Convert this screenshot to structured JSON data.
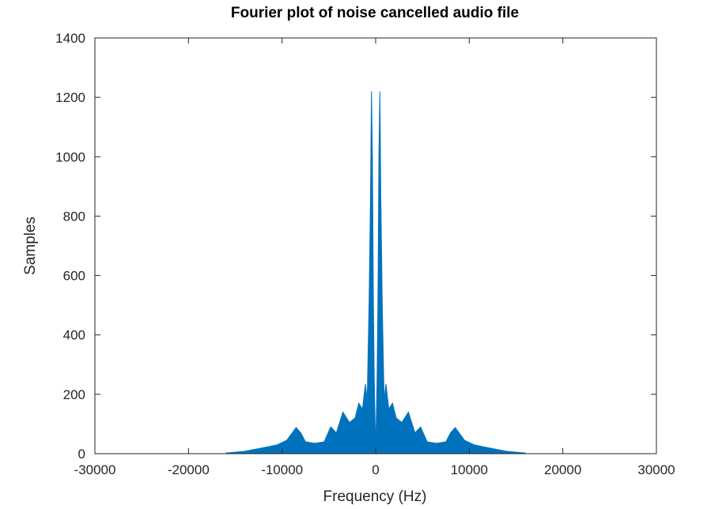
{
  "chart_data": {
    "type": "line",
    "title": "Fourier plot of noise cancelled audio file",
    "xlabel": "Frequency (Hz)",
    "ylabel": "Samples",
    "xlim": [
      -30000,
      30000
    ],
    "ylim": [
      0,
      1400
    ],
    "xticks": [
      -30000,
      -20000,
      -10000,
      0,
      10000,
      20000,
      30000
    ],
    "yticks": [
      0,
      200,
      400,
      600,
      800,
      1000,
      1200,
      1400
    ],
    "xtick_labels": [
      "-30000",
      "-20000",
      "-10000",
      "0",
      "10000",
      "20000",
      "30000"
    ],
    "ytick_labels": [
      "0",
      "200",
      "400",
      "600",
      "800",
      "1000",
      "1200",
      "1400"
    ],
    "grid": false,
    "line_color": "#0072bd",
    "series": [
      {
        "x": [
          -16000,
          -14000,
          -12000,
          -10500,
          -9500,
          -8800,
          -8500,
          -8000,
          -7500,
          -6500,
          -5500,
          -4800,
          -4200,
          -3500,
          -2800,
          -2200,
          -1800,
          -1400,
          -1100,
          -900,
          -700,
          -550,
          -450,
          -350,
          -250,
          -150,
          0,
          150,
          250,
          350,
          450,
          550,
          700,
          900,
          1100,
          1400,
          1800,
          2200,
          2800,
          3500,
          4200,
          4800,
          5500,
          6500,
          7500,
          8000,
          8500,
          8800,
          9500,
          10500,
          12000,
          14000,
          16000
        ],
        "y": [
          2,
          8,
          20,
          30,
          45,
          75,
          88,
          70,
          40,
          35,
          40,
          90,
          70,
          140,
          105,
          120,
          170,
          150,
          235,
          180,
          510,
          870,
          1220,
          1000,
          550,
          250,
          10,
          250,
          550,
          1000,
          1220,
          870,
          510,
          180,
          235,
          150,
          170,
          120,
          105,
          140,
          70,
          90,
          40,
          35,
          40,
          70,
          88,
          75,
          45,
          30,
          20,
          8,
          2
        ]
      }
    ]
  }
}
